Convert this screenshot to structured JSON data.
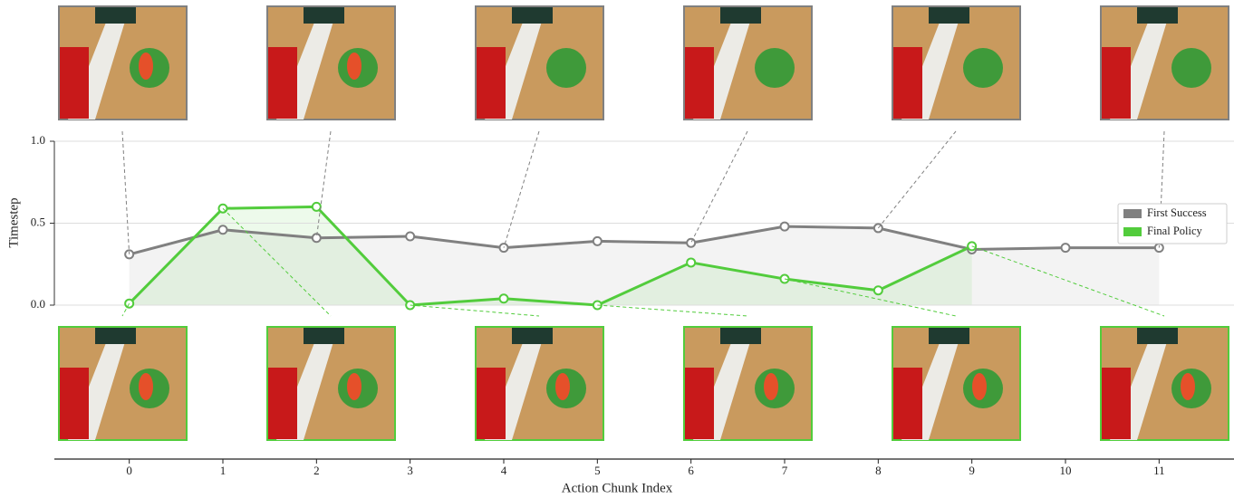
{
  "chart_data": {
    "type": "line",
    "x": [
      0,
      1,
      2,
      3,
      4,
      5,
      6,
      7,
      8,
      9,
      10,
      11
    ],
    "xlim": [
      -0.8,
      11.8
    ],
    "xticks": [
      0,
      1,
      2,
      3,
      4,
      5,
      6,
      7,
      8,
      9,
      10,
      11
    ],
    "ylim": [
      0,
      1
    ],
    "yticks": [
      {
        "value": 0,
        "label": "0.0"
      },
      {
        "value": 0.5,
        "label": "0.5"
      },
      {
        "value": 1,
        "label": "1.0"
      }
    ],
    "xlabel": "Action Chunk Index",
    "ylabel": "Timestep",
    "grid": true,
    "legend": "right",
    "series": [
      {
        "name": "First Success",
        "color": "#808080",
        "values": [
          0.31,
          0.46,
          0.41,
          0.42,
          0.35,
          0.39,
          0.38,
          0.48,
          0.47,
          0.34,
          0.35,
          0.35
        ]
      },
      {
        "name": "Final Policy",
        "color": "#52cc3c",
        "values": [
          0.01,
          0.59,
          0.6,
          0,
          0.04,
          0,
          0.26,
          0.16,
          0.09,
          0.36,
          null,
          null
        ]
      }
    ]
  }
}
